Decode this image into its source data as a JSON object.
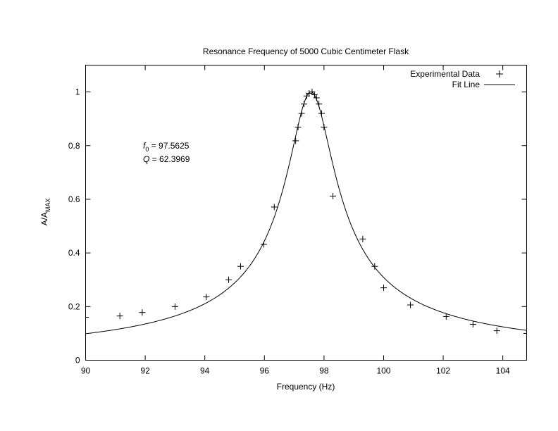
{
  "chart_data": {
    "type": "scatter",
    "title": "Resonance Frequency of 5000 Cubic Centimeter Flask",
    "xlabel": "Frequency (Hz)",
    "ylabel_main": "A/A",
    "ylabel_sub": "MAX",
    "xlim": [
      90,
      104.8
    ],
    "ylim": [
      0,
      1.1
    ],
    "xticks": [
      90,
      92,
      94,
      96,
      98,
      100,
      102,
      104
    ],
    "yticks": [
      0,
      0.2,
      0.4,
      0.6,
      0.8,
      1
    ],
    "ytick_labels": [
      "0",
      "0.2",
      "0.4",
      "0.6",
      "0.8",
      "1"
    ],
    "legend": {
      "position": "top-right",
      "entries": [
        "Experimental Data",
        "Fit Line"
      ]
    },
    "annotation": {
      "f0_symbol": "f",
      "f0_sub": "0",
      "f0_text": " = 97.5625",
      "q_symbol": "Q",
      "q_text": " = 62.3969"
    },
    "fit": {
      "f0": 97.5625,
      "Q": 62.3969
    },
    "series": [
      {
        "name": "Experimental Data",
        "marker": "+",
        "points": [
          [
            90.0,
            0.16
          ],
          [
            91.15,
            0.165
          ],
          [
            91.9,
            0.178
          ],
          [
            93.0,
            0.2
          ],
          [
            94.05,
            0.236
          ],
          [
            94.8,
            0.3
          ],
          [
            95.2,
            0.35
          ],
          [
            95.98,
            0.432
          ],
          [
            96.33,
            0.571
          ],
          [
            97.05,
            0.818
          ],
          [
            97.13,
            0.869
          ],
          [
            97.25,
            0.92
          ],
          [
            97.33,
            0.955
          ],
          [
            97.42,
            0.985
          ],
          [
            97.5,
            0.995
          ],
          [
            97.6,
            1.0
          ],
          [
            97.68,
            0.99
          ],
          [
            97.75,
            0.978
          ],
          [
            97.83,
            0.955
          ],
          [
            97.92,
            0.92
          ],
          [
            98.0,
            0.869
          ],
          [
            98.3,
            0.612
          ],
          [
            99.3,
            0.452
          ],
          [
            99.7,
            0.35
          ],
          [
            100.0,
            0.27
          ],
          [
            100.9,
            0.206
          ],
          [
            102.1,
            0.163
          ],
          [
            103.0,
            0.134
          ],
          [
            103.8,
            0.11
          ],
          [
            104.8,
            0.1
          ]
        ]
      },
      {
        "name": "Fit Line",
        "style": "line"
      }
    ]
  }
}
